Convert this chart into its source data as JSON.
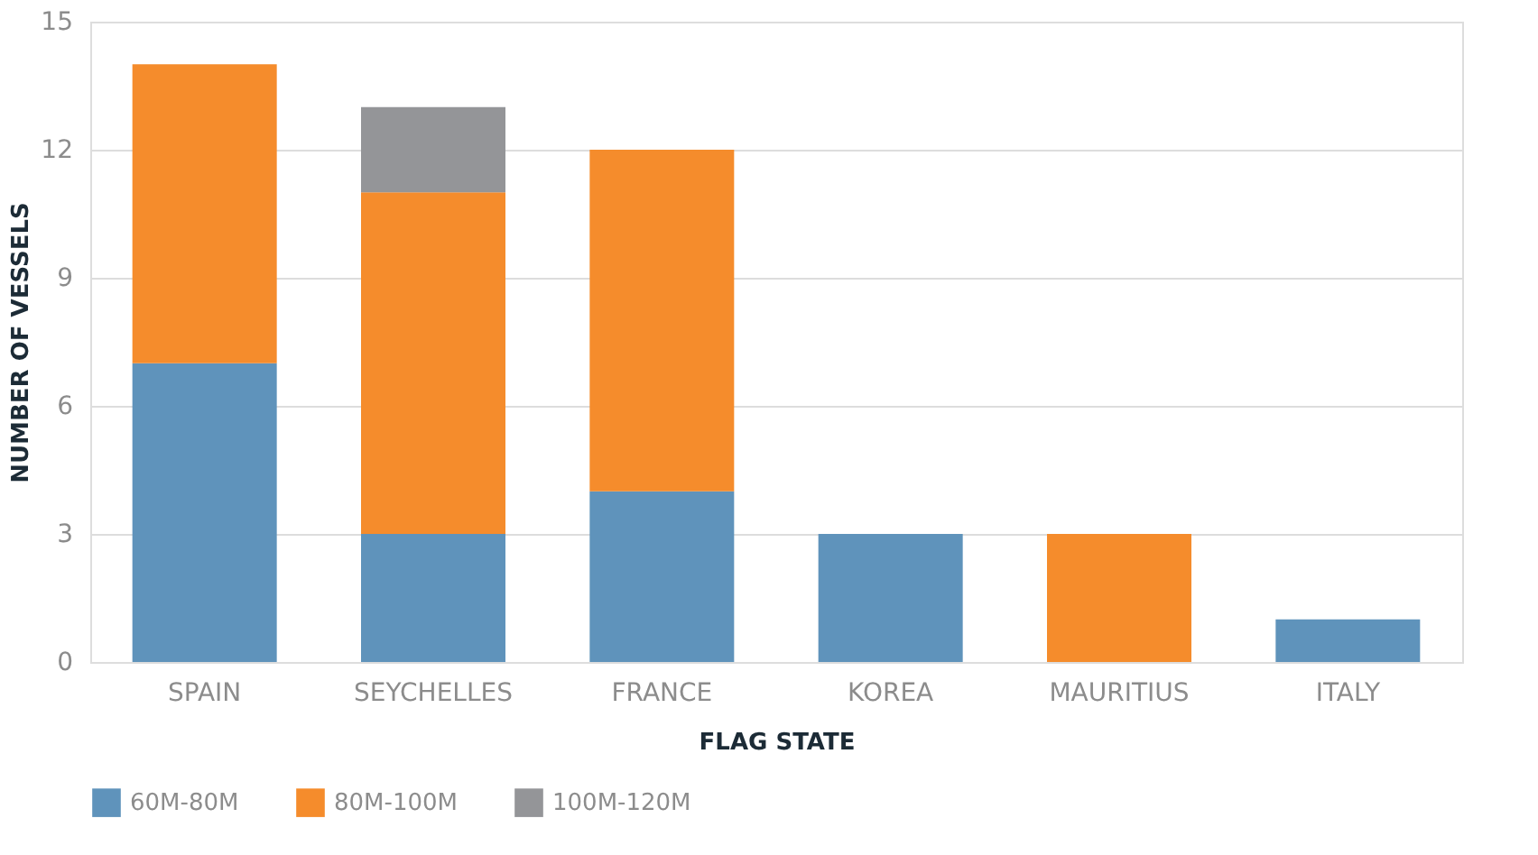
{
  "chart_data": {
    "type": "bar",
    "stacked": true,
    "xlabel": "FLAG STATE",
    "ylabel": "NUMBER OF VESSELS",
    "categories": [
      "SPAIN",
      "SEYCHELLES",
      "FRANCE",
      "KOREA",
      "MAURITIUS",
      "ITALY"
    ],
    "series": [
      {
        "name": "60M-80M",
        "color": "#5f93bb",
        "values": [
          7,
          3,
          4,
          3,
          0,
          1
        ]
      },
      {
        "name": "80M-100M",
        "color": "#f58c2c",
        "values": [
          7,
          8,
          8,
          0,
          3,
          0
        ]
      },
      {
        "name": "100M-120M",
        "color": "#949598",
        "values": [
          0,
          2,
          0,
          0,
          0,
          0
        ]
      }
    ],
    "ylim": [
      0,
      15
    ],
    "yticks": [
      0,
      3,
      6,
      9,
      12,
      15
    ],
    "grid": "y",
    "legend": "bottom"
  }
}
